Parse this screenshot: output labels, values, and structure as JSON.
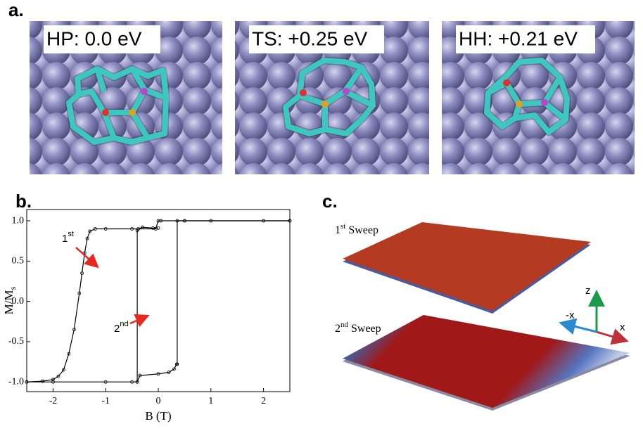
{
  "panel_a": {
    "label": "a.",
    "images": [
      {
        "caption": "HP: 0.0 eV"
      },
      {
        "caption": "TS: +0.25 eV"
      },
      {
        "caption": "HH: +0.21 eV"
      }
    ]
  },
  "chart_data": {
    "type": "line",
    "panel_label": "b.",
    "x_label": "B (T)",
    "y_label": {
      "base": "M/M",
      "sub": "s"
    },
    "xlim": [
      -2.5,
      2.5
    ],
    "xticks": [
      -2,
      -1,
      0,
      1,
      2
    ],
    "ylim": [
      -1.12,
      1.14
    ],
    "yticks": [
      {
        "value": -1,
        "label": "-1.0"
      },
      -0.5,
      {
        "value": 0,
        "label": "0.0"
      },
      0.5,
      {
        "value": 1,
        "label": "1.0"
      }
    ],
    "series": [
      {
        "color": "#000000",
        "x": [
          -2.5,
          -2.2,
          -2.0,
          -1.9,
          -1.8,
          -1.7,
          -1.6,
          -1.5,
          -1.45,
          -1.4,
          -1.35,
          -1.3,
          -1.2,
          -1.0,
          -0.5,
          -0.05,
          0.0,
          0.05,
          0.5,
          1,
          2,
          2.5
        ],
        "y": [
          -1.0,
          -0.99,
          -0.97,
          -0.93,
          -0.85,
          -0.65,
          -0.35,
          0.1,
          0.35,
          0.6,
          0.78,
          0.87,
          0.9,
          0.9,
          0.9,
          0.9,
          1.0,
          1.0,
          1.0,
          1.0,
          1.0,
          1.0
        ]
      },
      {
        "color": "#000000",
        "x": [
          -0.4,
          -0.4,
          -0.38,
          -0.3,
          -0.1,
          0.0
        ],
        "y": [
          -1.0,
          0.88,
          0.9,
          0.92,
          0.91,
          0.91
        ]
      },
      {
        "color": "#000000",
        "x": [
          -2.5,
          -2.0,
          -1.0,
          -0.5,
          -0.4,
          -0.35,
          0.0,
          0.2,
          0.3,
          0.35,
          0.36,
          0.36,
          0.5,
          2.5
        ],
        "y": [
          -1.0,
          -1.0,
          -1.0,
          -1.0,
          -1.0,
          -0.92,
          -0.9,
          -0.88,
          -0.84,
          -0.78,
          -0.78,
          1.0,
          1.0,
          1.0
        ]
      }
    ],
    "annotations": [
      {
        "base": "1",
        "sup": "st"
      },
      {
        "base": "2",
        "sup": "nd"
      }
    ]
  },
  "panel_c": {
    "label": "c.",
    "sweeps": [
      {
        "base": "1",
        "sup": "st",
        "text": " Sweep"
      },
      {
        "base": "2",
        "sup": "nd",
        "text": " Sweep"
      }
    ],
    "axes": {
      "z": "z",
      "neg_x": "-x",
      "x": "x"
    }
  }
}
